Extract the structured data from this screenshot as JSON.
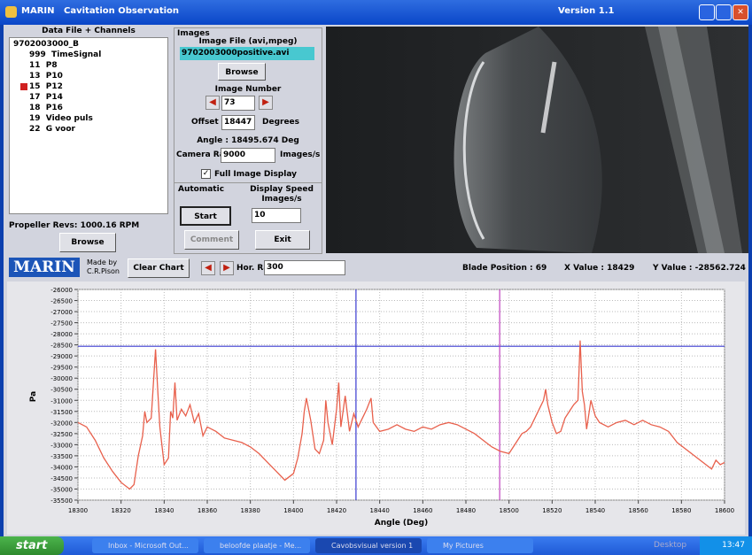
{
  "window": {
    "app": "MARIN",
    "title": "Cavitation Observation",
    "version": "Version 1.1"
  },
  "left_panel": {
    "header": "Data File + Channels",
    "tree": [
      "9702003000_B",
      "999  TimeSignal",
      "11  P8",
      "13  P10",
      "15  P12",
      "17  P14",
      "18  P16",
      "19  Video puls",
      "22  G voor"
    ],
    "revs": "Propeller Revs: 1000.16 RPM",
    "browse": "Browse"
  },
  "images_panel": {
    "group": "Images",
    "file_label": "Image File (avi,mpeg)",
    "file": "9702003000positive.avi",
    "browse": "Browse",
    "number_label": "Image Number",
    "number": "73",
    "offset_label": "Offset",
    "offset": "18447",
    "offset_unit": "Degrees",
    "angle": "Angle : 18495.674 Deg",
    "rate_label": "Camera Rate",
    "rate": "9000",
    "rate_unit": "Images/s",
    "full_display": "Full Image Display",
    "automatic": "Automatic",
    "speed_label": "Display Speed Images/s",
    "start": "Start",
    "speed": "10",
    "comment": "Comment",
    "exit": "Exit"
  },
  "toolbar": {
    "logo": "MARIN",
    "made_by": "Made by C.R.Pison",
    "clear": "Clear Chart",
    "range_label": "Hor. Range",
    "range": "300",
    "blade": "Blade Position : 69",
    "xvalue": "X Value : 18429",
    "yvalue": "Y Value : -28562.724"
  },
  "chart_data": {
    "type": "line",
    "xlabel": "Angle (Deg)",
    "ylabel": "Pa",
    "color": "#e8604c",
    "grid": true,
    "xlim": [
      18300,
      18600
    ],
    "ylim": [
      -35500,
      -26000
    ],
    "xticks": [
      18300,
      18320,
      18340,
      18360,
      18380,
      18400,
      18420,
      18440,
      18460,
      18480,
      18500,
      18520,
      18540,
      18560,
      18580,
      18600
    ],
    "yticks": [
      -26000,
      -26500,
      -27000,
      -27500,
      -28000,
      -28500,
      -29000,
      -29500,
      -30000,
      -30500,
      -31000,
      -31500,
      -32000,
      -32500,
      -33000,
      -33500,
      -34000,
      -34500,
      -35000,
      -35500
    ],
    "vlines": [
      {
        "value": 18429,
        "color": "#3a3ad0"
      },
      {
        "value": 18495.674,
        "color": "#c040c0"
      }
    ],
    "hlines": [
      {
        "value": -28562.724,
        "color": "#3a3ad0"
      }
    ],
    "x": [
      18300,
      18304,
      18308,
      18312,
      18316,
      18320,
      18324,
      18326,
      18328,
      18330,
      18331,
      18332,
      18334,
      18336,
      18337,
      18338,
      18340,
      18342,
      18343,
      18344,
      18345,
      18346,
      18348,
      18350,
      18352,
      18354,
      18356,
      18358,
      18360,
      18364,
      18368,
      18372,
      18376,
      18380,
      18384,
      18388,
      18392,
      18396,
      18400,
      18402,
      18404,
      18405,
      18406,
      18408,
      18410,
      18412,
      18414,
      18415,
      18416,
      18418,
      18420,
      18421,
      18422,
      18424,
      18426,
      18428,
      18430,
      18432,
      18434,
      18436,
      18437,
      18440,
      18444,
      18448,
      18452,
      18456,
      18460,
      18464,
      18468,
      18472,
      18476,
      18480,
      18484,
      18488,
      18492,
      18496,
      18500,
      18502,
      18504,
      18506,
      18508,
      18510,
      18512,
      18514,
      18516,
      18517,
      18518,
      18520,
      18522,
      18524,
      18526,
      18528,
      18530,
      18532,
      18533,
      18534,
      18535,
      18536,
      18538,
      18540,
      18542,
      18546,
      18550,
      18554,
      18558,
      18562,
      18566,
      18570,
      18574,
      18578,
      18582,
      18586,
      18590,
      18594,
      18596,
      18598,
      18600
    ],
    "values": [
      -32000,
      -32200,
      -32800,
      -33600,
      -34200,
      -34700,
      -35000,
      -34800,
      -33500,
      -32600,
      -31500,
      -32000,
      -31800,
      -28700,
      -30500,
      -32200,
      -33900,
      -33600,
      -31500,
      -31800,
      -30200,
      -31900,
      -31400,
      -31700,
      -31200,
      -32000,
      -31600,
      -32600,
      -32200,
      -32400,
      -32700,
      -32800,
      -32900,
      -33100,
      -33400,
      -33800,
      -34200,
      -34600,
      -34300,
      -33600,
      -32500,
      -31500,
      -30900,
      -31900,
      -33200,
      -33400,
      -32800,
      -31000,
      -32000,
      -33000,
      -31400,
      -30200,
      -32200,
      -30800,
      -32400,
      -31600,
      -32200,
      -31800,
      -31400,
      -30900,
      -32000,
      -32400,
      -32300,
      -32100,
      -32300,
      -32400,
      -32200,
      -32300,
      -32100,
      -32000,
      -32100,
      -32300,
      -32500,
      -32800,
      -33100,
      -33300,
      -33400,
      -33100,
      -32800,
      -32500,
      -32400,
      -32200,
      -31800,
      -31400,
      -31000,
      -30500,
      -31200,
      -32000,
      -32500,
      -32400,
      -31800,
      -31500,
      -31200,
      -31000,
      -28300,
      -30600,
      -31200,
      -32300,
      -31000,
      -31700,
      -32000,
      -32200,
      -32000,
      -31900,
      -32100,
      -31900,
      -32100,
      -32200,
      -32400,
      -32900,
      -33200,
      -33500,
      -33800,
      -34100,
      -33700,
      -33900,
      -33800
    ]
  },
  "taskbar": {
    "start": "start",
    "items": [
      "Inbox - Microsoft Out...",
      "beloofde plaatje - Me...",
      "Cavobsvisual version 1",
      "My Pictures"
    ],
    "desktop": "Desktop",
    "clock": "13:47"
  }
}
